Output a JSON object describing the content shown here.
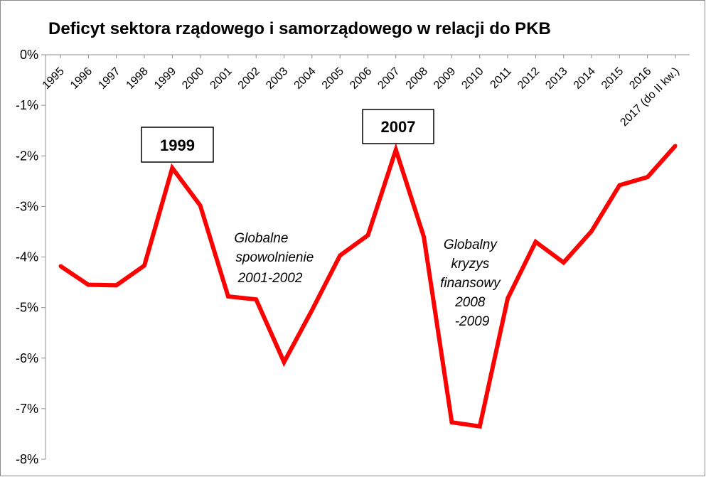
{
  "chart_data": {
    "type": "line",
    "title": "Deficyt sektora rządowego i samorządowego w relacji do PKB",
    "xlabel": "",
    "ylabel": "",
    "categories": [
      "1995",
      "1996",
      "1997",
      "1998",
      "1999",
      "2000",
      "2001",
      "2002",
      "2003",
      "2004",
      "2005",
      "2006",
      "2007",
      "2008",
      "2009",
      "2010",
      "2011",
      "2012",
      "2013",
      "2014",
      "2015",
      "2016",
      "2017 (do II kw.)"
    ],
    "series": [
      {
        "name": "",
        "color": "#ff0000",
        "values": [
          -4.18,
          -4.55,
          -4.56,
          -4.17,
          -2.24,
          -2.98,
          -4.78,
          -4.84,
          -6.08,
          -5.05,
          -3.97,
          -3.57,
          -1.88,
          -3.6,
          -7.27,
          -7.35,
          -4.82,
          -3.7,
          -4.11,
          -3.49,
          -2.58,
          -2.42,
          -1.8
        ]
      }
    ],
    "ylim": [
      -8,
      0
    ],
    "yticks": [
      0,
      -1,
      -2,
      -3,
      -4,
      -5,
      -6,
      -7,
      -8
    ],
    "ytick_labels": [
      "0%",
      "-1%",
      "-2%",
      "-3%",
      "-4%",
      "-5%",
      "-6%",
      "-7%",
      "-8%"
    ],
    "grid": false,
    "legend": "none",
    "annotations": [
      {
        "lines": [
          "Globalne",
          "spowolnienie",
          "2001-2002"
        ],
        "style": "italic"
      },
      {
        "lines": [
          "Globalny",
          "kryzys",
          "finansowy",
          "2008",
          "-2009"
        ],
        "style": "italic"
      }
    ],
    "callouts": [
      {
        "label": "1999",
        "category": "1999"
      },
      {
        "label": "2007",
        "category": "2007"
      }
    ]
  }
}
